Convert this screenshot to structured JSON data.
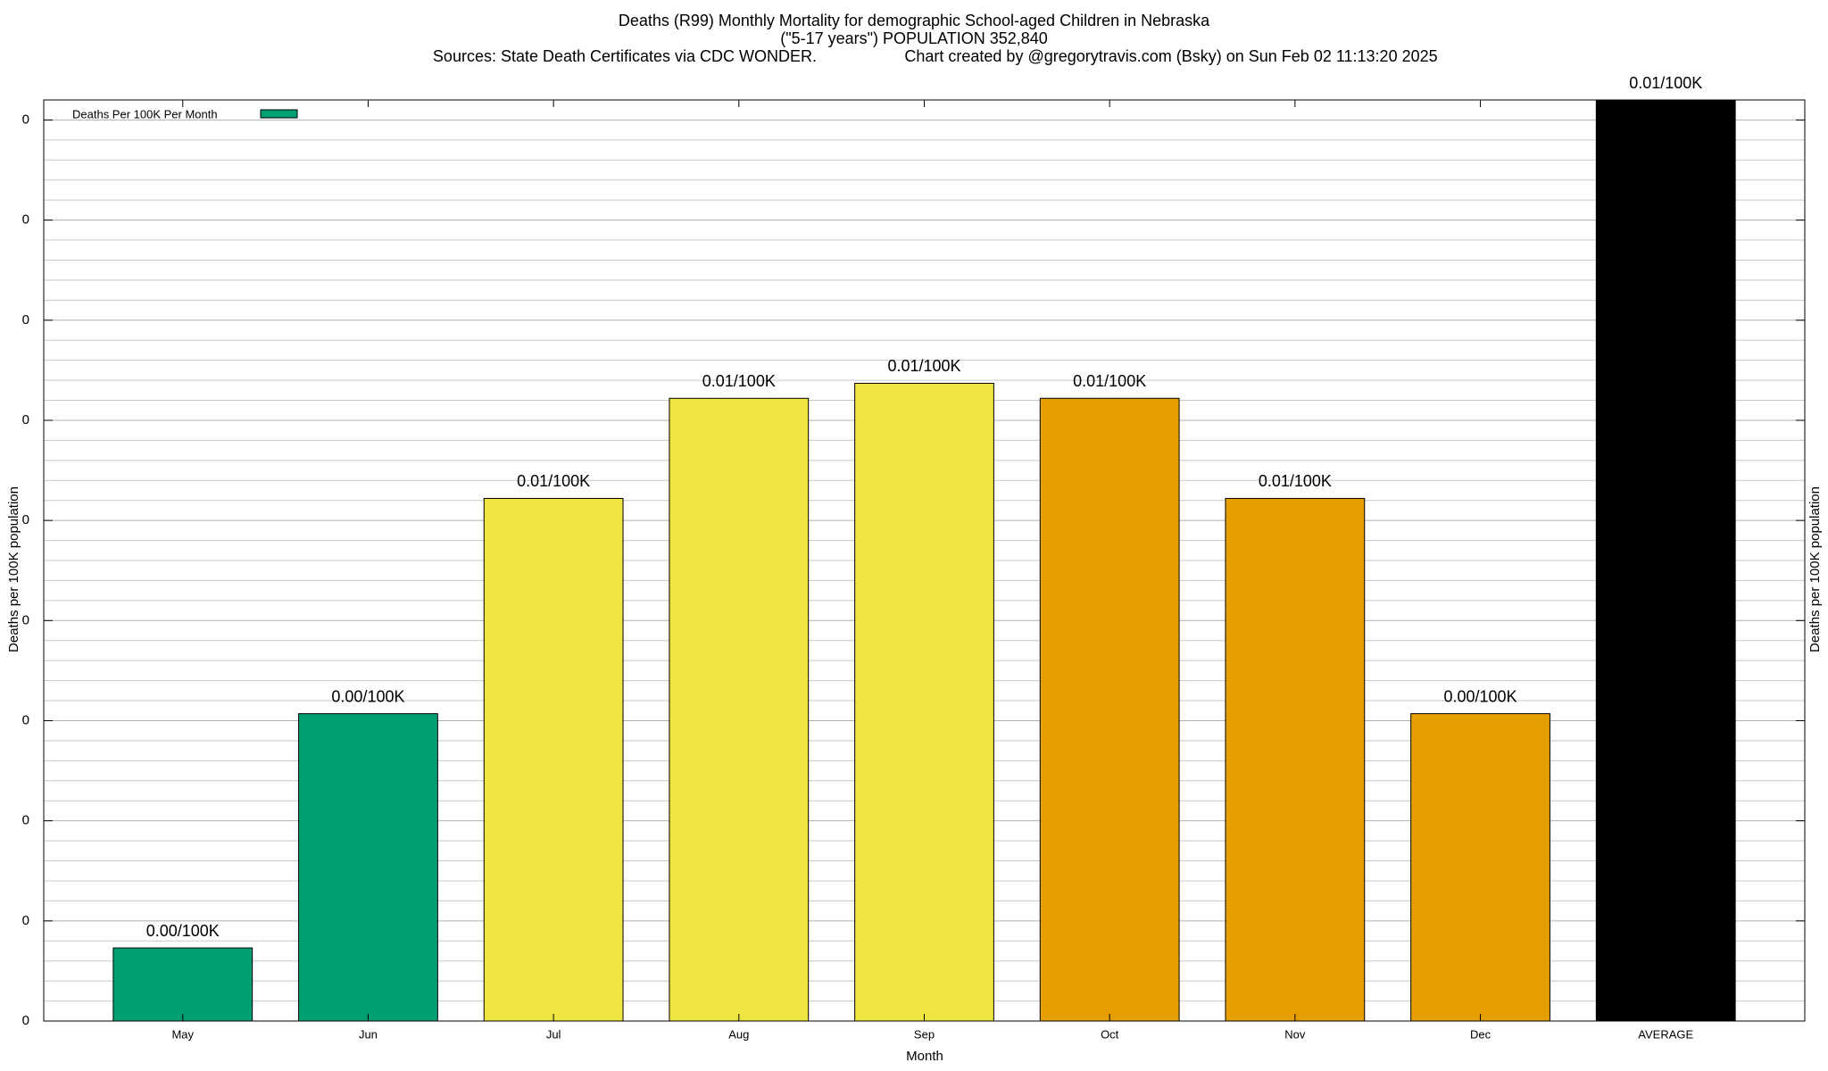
{
  "chart_data": {
    "type": "bar",
    "title": "Deaths (R99) Monthly Mortality for demographic School-aged Children in Nebraska",
    "subtitle": "(\"5-17 years\") POPULATION 352,840",
    "source": "Sources: State Death Certificates via CDC WONDER.",
    "credit": "Chart created by @gregorytravis.com (Bsky) on Sun Feb 02 11:13:20 2025",
    "x_label": "Month",
    "y_label": "Deaths per 100K population",
    "categories": [
      "May",
      "Jun",
      "Jul",
      "Aug",
      "Sep",
      "Oct",
      "Nov",
      "Dec",
      "AVERAGE"
    ],
    "series": [
      {
        "name": "Deaths Per 100K Per Month",
        "color": "#009e73",
        "colors": [
          "#009e73",
          "#009e73",
          "#f0e442",
          "#f0e442",
          "#f0e442",
          "#e69f00",
          "#e69f00",
          "#e69f00",
          "#000000"
        ],
        "values": [
          0.00073,
          0.00307,
          0.00522,
          0.00622,
          0.00637,
          0.00622,
          0.00522,
          0.00307,
          0.0092
        ],
        "value_labels": [
          "0.00/100K",
          "0.00/100K",
          "0.01/100K",
          "0.01/100K",
          "0.01/100K",
          "0.01/100K",
          "0.01/100K",
          "0.00/100K",
          "0.01/100K"
        ]
      }
    ],
    "ylim": [
      0,
      0.0092
    ],
    "yticks": [
      0,
      {
        "value": 0.001,
        "label": "0"
      },
      {
        "value": 0.002,
        "label": "0"
      },
      {
        "value": 0.003,
        "label": "0"
      },
      {
        "value": 0.004,
        "label": "0"
      },
      {
        "value": 0.005,
        "label": "0"
      },
      {
        "value": 0.006,
        "label": "0"
      },
      {
        "value": 0.007,
        "label": "0"
      },
      {
        "value": 0.008,
        "label": "0"
      },
      {
        "value": 0.009,
        "label": "0"
      }
    ],
    "grid": true,
    "minor_grid": 5,
    "legend": "upper left"
  }
}
